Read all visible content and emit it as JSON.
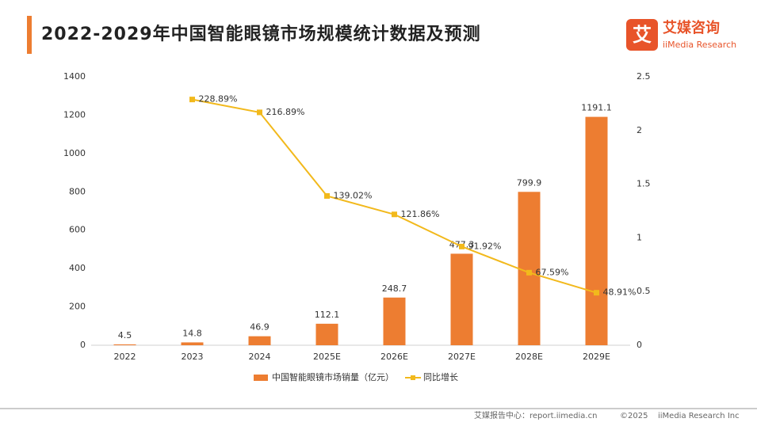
{
  "chart_data": {
    "type": "bar",
    "title": "2022-2029年中国智能眼镜市场规模统计数据及预测",
    "categories": [
      "2022",
      "2023",
      "2024",
      "2025E",
      "2026E",
      "2027E",
      "2028E",
      "2029E"
    ],
    "series": [
      {
        "name": "中国智能眼镜市场销量（亿元）",
        "type": "bar",
        "color": "#ed7d31",
        "values": [
          4.5,
          14.8,
          46.9,
          112.1,
          248.7,
          477.3,
          799.9,
          1191.1
        ]
      },
      {
        "name": "同比增长",
        "type": "line",
        "axis": "y2",
        "color": "#f2b91c",
        "values": [
          null,
          2.2889,
          2.1689,
          1.3902,
          1.2186,
          0.9192,
          0.6759,
          0.4891
        ],
        "value_labels": [
          null,
          "228.89%",
          "216.89%",
          "139.02%",
          "121.86%",
          "91.92%",
          "67.59%",
          "48.91%"
        ]
      }
    ],
    "ylim": [
      0,
      1400
    ],
    "yticks": [
      0,
      200,
      400,
      600,
      800,
      1000,
      1200,
      1400
    ],
    "y2lim": [
      0,
      2.5
    ],
    "y2ticks": [
      0,
      0.5,
      1,
      1.5,
      2,
      2.5
    ],
    "legend": "bottom"
  },
  "brand": {
    "name": "艾媒咨询",
    "sub": "iiMedia Research"
  },
  "footer": {
    "source": "艾媒报告中心：report.iimedia.cn",
    "copyright": "©2025",
    "company": "iiMedia Research Inc"
  }
}
